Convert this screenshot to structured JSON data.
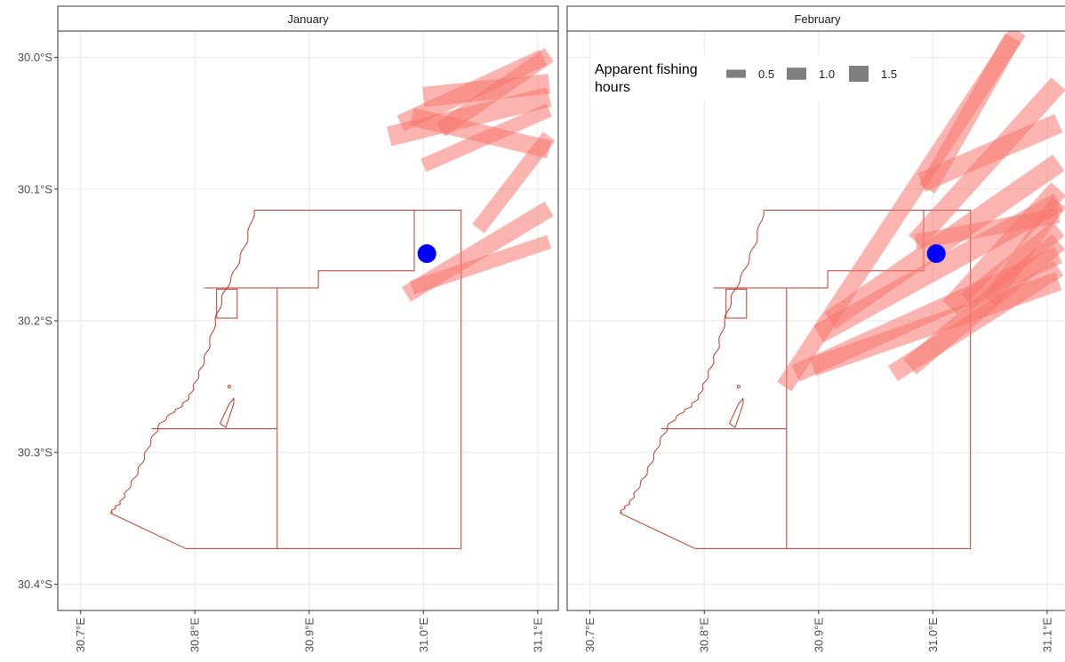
{
  "panels": [
    {
      "title": "January",
      "station": {
        "lon": 31.003,
        "lat": -30.149
      },
      "tracks": [
        {
          "lon1": 30.97,
          "lat1": -30.06,
          "lon2": 31.11,
          "lat2": -30.03,
          "hours": 1.5
        },
        {
          "lon1": 30.98,
          "lat1": -30.05,
          "lon2": 31.105,
          "lat2": -30.0,
          "hours": 1.2
        },
        {
          "lon1": 30.99,
          "lat1": -30.045,
          "lon2": 31.11,
          "lat2": -30.07,
          "hours": 1.3
        },
        {
          "lon1": 31.0,
          "lat1": -30.03,
          "lon2": 31.11,
          "lat2": -30.02,
          "hours": 1.5
        },
        {
          "lon1": 31.015,
          "lat1": -30.055,
          "lon2": 31.11,
          "lat2": -29.998,
          "hours": 1.1
        },
        {
          "lon1": 31.048,
          "lat1": -30.13,
          "lon2": 31.11,
          "lat2": -30.06,
          "hours": 1.0
        },
        {
          "lon1": 31.0,
          "lat1": -30.082,
          "lon2": 31.11,
          "lat2": -30.04,
          "hours": 0.9
        },
        {
          "lon1": 30.985,
          "lat1": -30.18,
          "lon2": 31.11,
          "lat2": -30.115,
          "hours": 1.2
        },
        {
          "lon1": 30.99,
          "lat1": -30.175,
          "lon2": 31.11,
          "lat2": -30.14,
          "hours": 0.9
        }
      ]
    },
    {
      "title": "February",
      "station": {
        "lon": 31.003,
        "lat": -30.149
      },
      "tracks": [
        {
          "lon1": 30.87,
          "lat1": -30.25,
          "lon2": 31.075,
          "lat2": -29.98,
          "hours": 1.2
        },
        {
          "lon1": 30.88,
          "lat1": -30.24,
          "lon2": 31.11,
          "lat2": -30.15,
          "hours": 1.3
        },
        {
          "lon1": 30.9,
          "lat1": -30.21,
          "lon2": 31.11,
          "lat2": -30.11,
          "hours": 1.5
        },
        {
          "lon1": 30.895,
          "lat1": -30.235,
          "lon2": 31.11,
          "lat2": -30.17,
          "hours": 1.4
        },
        {
          "lon1": 30.91,
          "lat1": -30.2,
          "lon2": 31.11,
          "lat2": -30.08,
          "hours": 1.5
        },
        {
          "lon1": 30.985,
          "lat1": -30.14,
          "lon2": 31.11,
          "lat2": -30.02,
          "hours": 1.4
        },
        {
          "lon1": 30.99,
          "lat1": -30.095,
          "lon2": 31.11,
          "lat2": -30.05,
          "hours": 1.5
        },
        {
          "lon1": 30.995,
          "lat1": -30.1,
          "lon2": 31.07,
          "lat2": -29.985,
          "hours": 1.3
        },
        {
          "lon1": 31.015,
          "lat1": -30.19,
          "lon2": 31.11,
          "lat2": -30.1,
          "hours": 1.5
        },
        {
          "lon1": 31.03,
          "lat1": -30.185,
          "lon2": 31.11,
          "lat2": -30.13,
          "hours": 1.4
        },
        {
          "lon1": 30.965,
          "lat1": -30.24,
          "lon2": 31.11,
          "lat2": -30.16,
          "hours": 1.3
        },
        {
          "lon1": 30.98,
          "lat1": -30.235,
          "lon2": 31.11,
          "lat2": -30.14,
          "hours": 1.5
        },
        {
          "lon1": 31.05,
          "lat1": -30.185,
          "lon2": 31.11,
          "lat2": -30.11,
          "hours": 1.2
        },
        {
          "lon1": 30.985,
          "lat1": -30.14,
          "lon2": 31.11,
          "lat2": -30.12,
          "hours": 1.0
        }
      ]
    }
  ],
  "boundaries": {
    "coast": [
      [
        30.852,
        -30.116
      ],
      [
        30.845,
        -30.14
      ],
      [
        30.836,
        -30.16
      ],
      [
        30.825,
        -30.18
      ],
      [
        30.818,
        -30.2
      ],
      [
        30.812,
        -30.22
      ],
      [
        30.806,
        -30.235
      ],
      [
        30.8,
        -30.248
      ],
      [
        30.795,
        -30.258
      ],
      [
        30.788,
        -30.265
      ],
      [
        30.78,
        -30.27
      ],
      [
        30.77,
        -30.278
      ],
      [
        30.762,
        -30.29
      ],
      [
        30.755,
        -30.305
      ],
      [
        30.748,
        -30.318
      ],
      [
        30.74,
        -30.33
      ],
      [
        30.735,
        -30.338
      ],
      [
        30.73,
        -30.342
      ],
      [
        30.726,
        -30.346
      ]
    ],
    "outline": [
      [
        30.852,
        -30.116
      ],
      [
        31.033,
        -30.116
      ],
      [
        31.033,
        -30.373
      ],
      [
        30.792,
        -30.373
      ],
      [
        30.726,
        -30.346
      ]
    ],
    "inner_lines": [
      [
        [
          30.992,
          -30.116
        ],
        [
          30.992,
          -30.162
        ],
        [
          30.908,
          -30.162
        ],
        [
          30.908,
          -30.175
        ],
        [
          30.808,
          -30.175
        ]
      ],
      [
        [
          30.872,
          -30.175
        ],
        [
          30.872,
          -30.373
        ]
      ],
      [
        [
          30.762,
          -30.282
        ],
        [
          30.872,
          -30.282
        ]
      ]
    ],
    "small_box": [
      [
        30.819,
        -30.176
      ],
      [
        30.837,
        -30.176
      ],
      [
        30.837,
        -30.198
      ],
      [
        30.819,
        -30.198
      ]
    ],
    "pier": [
      [
        30.822,
        -30.278
      ],
      [
        30.83,
        -30.263
      ],
      [
        30.834,
        -30.259
      ],
      [
        30.834,
        -30.263
      ],
      [
        30.827,
        -30.281
      ]
    ],
    "dot": {
      "lon": 30.83,
      "lat": -30.25
    }
  },
  "axes": {
    "lon_min": 30.68,
    "lon_max": 31.118,
    "lat_min": -30.42,
    "lat_max": -29.98,
    "x_ticks": [
      {
        "value": 30.7,
        "label": "30.7°E"
      },
      {
        "value": 30.8,
        "label": "30.8°E"
      },
      {
        "value": 30.9,
        "label": "30.9°E"
      },
      {
        "value": 31.0,
        "label": "31.0°E"
      },
      {
        "value": 31.1,
        "label": "31.1°E"
      }
    ],
    "y_ticks": [
      {
        "value": -30.0,
        "label": "30.0°S"
      },
      {
        "value": -30.1,
        "label": "30.1°S"
      },
      {
        "value": -30.2,
        "label": "30.2°S"
      },
      {
        "value": -30.3,
        "label": "30.3°S"
      },
      {
        "value": -30.4,
        "label": "30.4°S"
      }
    ]
  },
  "legend": {
    "title_line1": "Apparent fishing",
    "title_line2": "hours",
    "items": [
      {
        "label": "0.5",
        "value": 0.5
      },
      {
        "label": "1.0",
        "value": 1.0
      },
      {
        "label": "1.5",
        "value": 1.5
      }
    ]
  },
  "colors": {
    "track": "#F8766D",
    "station": "#0000FF",
    "boundary": "#C0392B",
    "grid": "#EBEBEB",
    "strip_bg": "#FFFFFF",
    "frame": "#333333",
    "legend_key": "#7F7F7F"
  }
}
